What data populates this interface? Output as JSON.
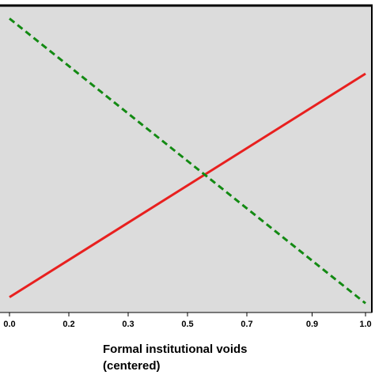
{
  "chart_data": {
    "type": "line",
    "xlabel": [
      "Formal institutional voids",
      "(centered)"
    ],
    "xlim": [
      0,
      1
    ],
    "xticks": [
      {
        "value": 0,
        "label": "0.0"
      },
      {
        "value": 0.1667,
        "label": "0.2"
      },
      {
        "value": 0.3333,
        "label": "0.3"
      },
      0.5,
      {
        "value": 0.6667,
        "label": "0.7"
      },
      {
        "value": 0.85,
        "label": "0.9"
      },
      {
        "value": 1,
        "label": "1.0"
      }
    ],
    "ylim": [
      0,
      1
    ],
    "background": "#dcdcdc",
    "series": [
      {
        "color": "#e8201f",
        "dash": false,
        "x": [
          0,
          1
        ],
        "values": [
          0.05,
          0.78
        ]
      },
      {
        "color": "#138a13",
        "dash": true,
        "x": [
          0,
          1
        ],
        "values": [
          0.96,
          0.03
        ]
      }
    ]
  }
}
